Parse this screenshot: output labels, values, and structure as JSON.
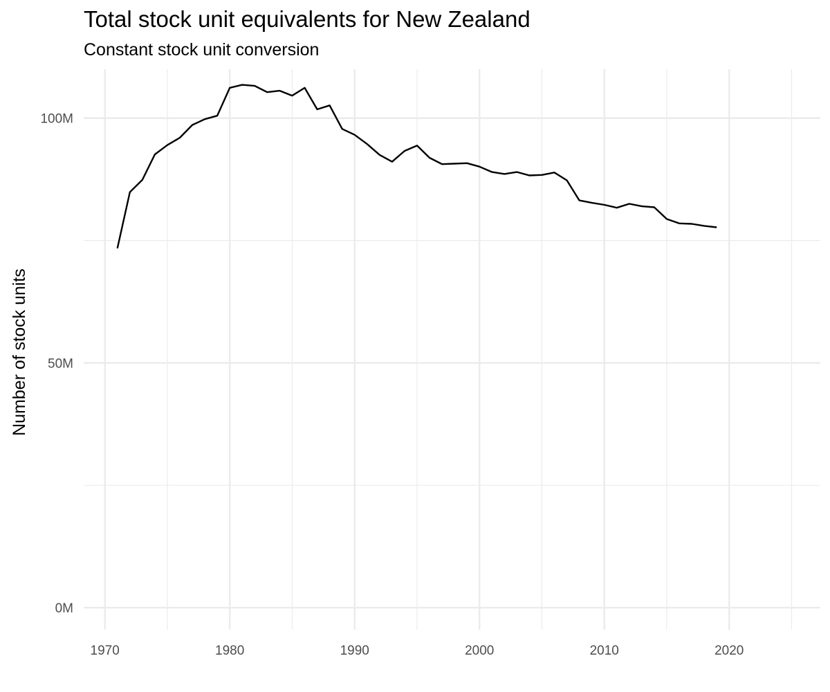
{
  "chart_data": {
    "type": "line",
    "title": "Total stock unit equivalents for New Zealand",
    "subtitle": "Constant stock unit conversion",
    "xlabel": "",
    "ylabel": "Number of stock units",
    "xlim": [
      1968.3,
      2027.3
    ],
    "ylim": [
      -4500000,
      110000000
    ],
    "x_ticks": [
      1970,
      1980,
      1990,
      2000,
      2010,
      2020
    ],
    "x_tick_labels": [
      "1970",
      "1980",
      "1990",
      "2000",
      "2010",
      "2020"
    ],
    "x_minor_ticks": [
      1975,
      1985,
      1995,
      2005,
      2015,
      2025
    ],
    "y_ticks": [
      0,
      50000000,
      100000000
    ],
    "y_tick_labels": [
      "0M",
      "50M",
      "100M"
    ],
    "y_minor_ticks": [
      25000000,
      75000000
    ],
    "grid": true,
    "legend": "none",
    "line_color": "#000000",
    "grid_color": "#ebebeb",
    "series": [
      {
        "x": [
          1971,
          1972,
          1973,
          1974,
          1975,
          1976,
          1977,
          1978,
          1979,
          1980,
          1981,
          1982,
          1983,
          1984,
          1985,
          1986,
          1987,
          1988,
          1989,
          1990,
          1991,
          1992,
          1993,
          1994,
          1995,
          1996,
          1997,
          1998,
          1999,
          2000,
          2001,
          2002,
          2003,
          2004,
          2005,
          2006,
          2007,
          2008,
          2009,
          2010,
          2011,
          2012,
          2013,
          2014,
          2015,
          2016,
          2017,
          2018,
          2019
        ],
        "values": [
          73400000,
          84900000,
          87400000,
          92600000,
          94500000,
          96000000,
          98600000,
          99800000,
          100500000,
          106200000,
          106800000,
          106600000,
          105300000,
          105600000,
          104600000,
          106200000,
          101800000,
          102600000,
          97800000,
          96600000,
          94700000,
          92500000,
          91100000,
          93300000,
          94400000,
          91900000,
          90600000,
          90700000,
          90800000,
          90100000,
          89000000,
          88600000,
          89000000,
          88300000,
          88400000,
          88900000,
          87300000,
          83200000,
          82700000,
          82300000,
          81700000,
          82500000,
          82000000,
          81800000,
          79400000,
          78500000,
          78400000,
          78000000,
          77700000
        ]
      }
    ]
  }
}
